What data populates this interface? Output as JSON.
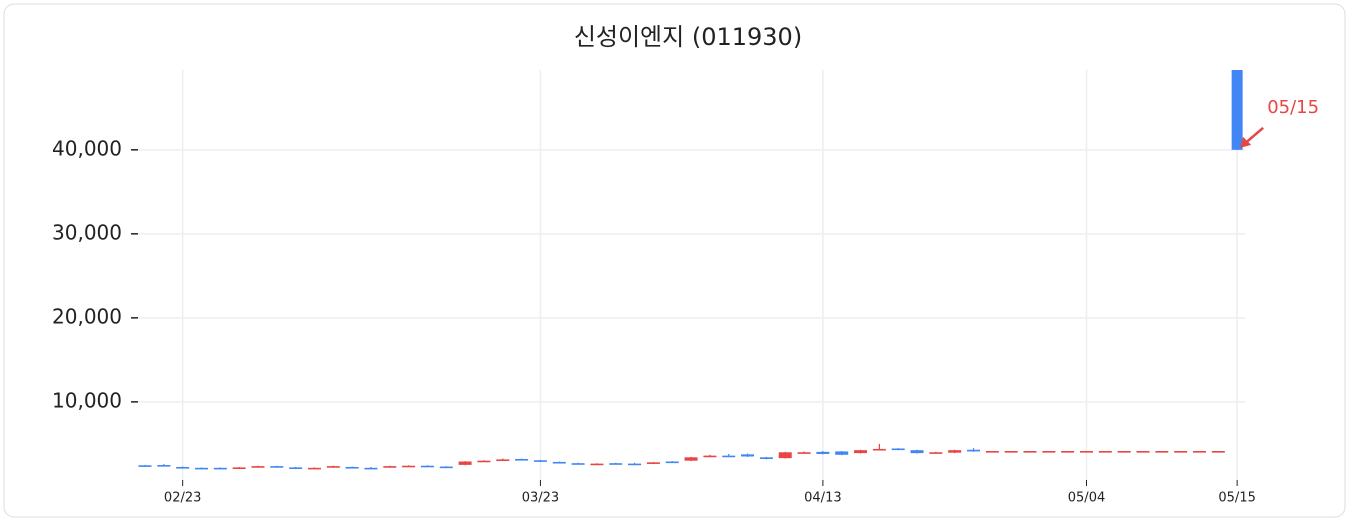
{
  "chart_data": {
    "type": "candlestick",
    "title": "신성이엔지 (011930)",
    "categories": [
      null,
      null,
      "02/23",
      null,
      null,
      null,
      null,
      null,
      null,
      null,
      null,
      null,
      null,
      null,
      null,
      null,
      null,
      null,
      null,
      null,
      null,
      "03/23",
      null,
      null,
      null,
      null,
      null,
      null,
      null,
      null,
      null,
      null,
      null,
      null,
      null,
      null,
      "04/13",
      null,
      null,
      null,
      null,
      null,
      null,
      null,
      null,
      null,
      null,
      null,
      null,
      null,
      "05/04",
      null,
      null,
      null,
      null,
      null,
      null,
      null,
      "05/15"
    ],
    "open": [
      2450,
      2480,
      2250,
      2150,
      2150,
      2150,
      2250,
      2350,
      2200,
      2050,
      2200,
      2250,
      2150,
      2250,
      2350,
      2400,
      2300,
      2500,
      2950,
      3050,
      3200,
      3050,
      2850,
      2700,
      2600,
      2700,
      2650,
      2750,
      2900,
      3000,
      3550,
      3600,
      3750,
      3400,
      3300,
      3900,
      4050,
      4100,
      3900,
      4300,
      4450,
      4250,
      3900,
      3950,
      4300,
      4150,
      4150,
      4150,
      4150,
      4150,
      4150,
      4150,
      4150,
      4150,
      4150,
      4150,
      4150,
      4150,
      49500
    ],
    "close": [
      2400,
      2400,
      2100,
      2100,
      2100,
      2200,
      2350,
      2300,
      2050,
      2150,
      2350,
      2200,
      2100,
      2350,
      2400,
      2350,
      2250,
      2900,
      3000,
      3150,
      3100,
      2900,
      2750,
      2650,
      2650,
      2650,
      2600,
      2800,
      2850,
      3400,
      3600,
      3500,
      3500,
      3200,
      4000,
      4000,
      3800,
      3700,
      4250,
      4400,
      4300,
      3900,
      4000,
      4250,
      4100,
      4150,
      4150,
      4150,
      4150,
      4150,
      4150,
      4150,
      4150,
      4150,
      4150,
      4150,
      4150,
      4150,
      40000
    ],
    "high": [
      2500,
      2600,
      2300,
      2200,
      2200,
      2250,
      2400,
      2400,
      2250,
      2200,
      2400,
      2300,
      2250,
      2400,
      2450,
      2450,
      2350,
      2950,
      3050,
      3250,
      3250,
      3100,
      2900,
      2750,
      2700,
      2750,
      2750,
      2850,
      2950,
      3450,
      3700,
      3800,
      3850,
      3450,
      4050,
      4100,
      4150,
      4150,
      4300,
      5000,
      4500,
      4300,
      4050,
      4300,
      4500,
      4150,
      4150,
      4150,
      4150,
      4150,
      4150,
      4150,
      4150,
      4150,
      4150,
      4150,
      4150,
      4150,
      49500
    ],
    "low": [
      2350,
      2350,
      2050,
      2050,
      2050,
      2100,
      2200,
      2250,
      2000,
      2000,
      2150,
      2150,
      2050,
      2200,
      2300,
      2300,
      2200,
      2450,
      2900,
      3000,
      3050,
      2850,
      2700,
      2600,
      2550,
      2600,
      2550,
      2700,
      2800,
      2950,
      3500,
      3450,
      3450,
      3150,
      3250,
      3850,
      3750,
      3650,
      3850,
      4250,
      4250,
      3850,
      3850,
      3900,
      4050,
      4150,
      4150,
      4150,
      4150,
      4150,
      4150,
      4150,
      4150,
      4150,
      4150,
      4150,
      4150,
      4150,
      40000
    ],
    "up_color": "#e84545",
    "down_color": "#4285f4",
    "ylim": [
      700,
      49500
    ],
    "yticks": [
      {
        "value": 10000,
        "label": "10,000"
      },
      {
        "value": 20000,
        "label": "20,000"
      },
      {
        "value": 30000,
        "label": "30,000"
      },
      {
        "value": 40000,
        "label": "40,000"
      }
    ],
    "grid": true,
    "annotation": {
      "text": "05/15",
      "color": "#e84545"
    }
  }
}
